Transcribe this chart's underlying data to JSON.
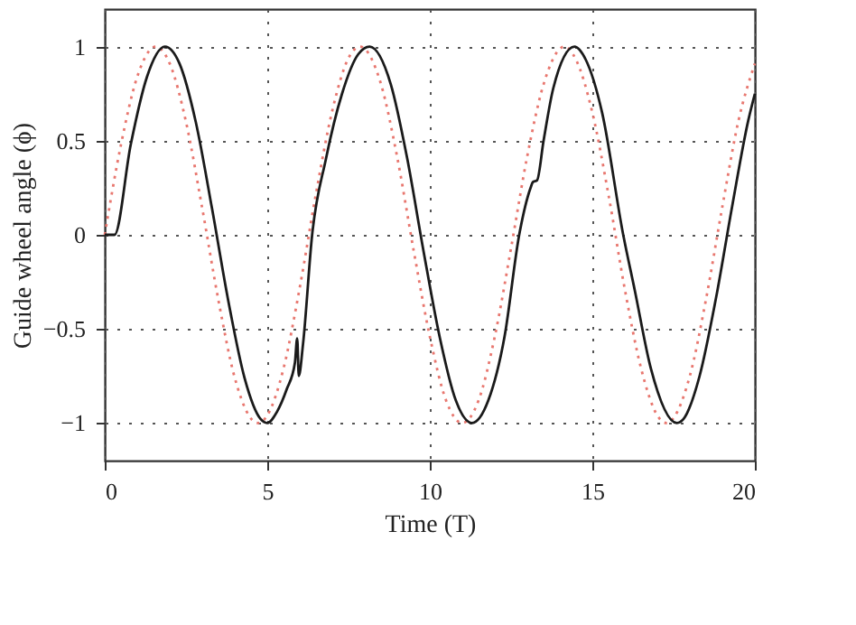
{
  "chart_data": {
    "type": "line",
    "xlabel": "Time (T)",
    "ylabel": "Guide wheel angle (ϕ)",
    "xlim": [
      0,
      20
    ],
    "xticks": [
      0,
      5,
      10,
      15,
      20
    ],
    "ylim": [
      -1.2,
      1.2
    ],
    "yticks": [
      -1,
      -0.5,
      0,
      0.5,
      1
    ],
    "grid": true,
    "series": [
      {
        "color": "#e8776f",
        "line_style": "dotted",
        "x": [
          0,
          0.5,
          1,
          1.57,
          2,
          2.5,
          3,
          3.5,
          4,
          4.71,
          5,
          5.5,
          6,
          6.5,
          7,
          7.5,
          7.85,
          8.5,
          9,
          9.5,
          10,
          10.5,
          11,
          11.5,
          12,
          12.5,
          13,
          13.5,
          14.14,
          14.5,
          15,
          15.5,
          16,
          16.5,
          17,
          17.28,
          18,
          18.5,
          19,
          19.5,
          20
        ],
        "values": [
          0,
          0.48,
          0.84,
          1,
          0.91,
          0.6,
          0.14,
          -0.35,
          -0.76,
          -1,
          -0.96,
          -0.71,
          -0.28,
          0.22,
          0.66,
          0.94,
          1,
          0.8,
          0.41,
          -0.08,
          -0.54,
          -0.88,
          -1,
          -0.88,
          -0.54,
          -0.07,
          0.42,
          0.8,
          1,
          0.93,
          0.65,
          0.21,
          -0.29,
          -0.71,
          -0.96,
          -1,
          -0.75,
          -0.34,
          0.15,
          0.61,
          0.91
        ]
      },
      {
        "color": "#1a1a1a",
        "line_style": "solid",
        "x": [
          0,
          0.3,
          0.8,
          1.3,
          1.85,
          2.3,
          2.8,
          3.3,
          3.8,
          4.3,
          4.8,
          5.0,
          5.3,
          5.6,
          5.85,
          5.92,
          5.97,
          6.1,
          6.38,
          6.8,
          7.3,
          7.8,
          8.15,
          8.8,
          9.3,
          9.8,
          10.3,
          10.8,
          11.3,
          11.8,
          12.3,
          12.75,
          13.1,
          13.17,
          13.3,
          13.5,
          13.8,
          14.45,
          14.8,
          15.3,
          15.95,
          16.3,
          16.8,
          17.6,
          17.8,
          18.3,
          18.8,
          19.3,
          19.8,
          20
        ],
        "values": [
          0,
          0,
          0.48,
          0.84,
          1,
          0.91,
          0.6,
          0.14,
          -0.35,
          -0.76,
          -0.98,
          -1,
          -0.94,
          -0.82,
          -0.68,
          -0.55,
          -0.75,
          -0.58,
          0,
          0.4,
          0.75,
          0.96,
          1,
          0.8,
          0.41,
          -0.08,
          -0.54,
          -0.88,
          -1,
          -0.88,
          -0.54,
          0,
          0.25,
          0.28,
          0.29,
          0.5,
          0.78,
          1,
          0.93,
          0.65,
          0,
          -0.29,
          -0.71,
          -1,
          -0.98,
          -0.75,
          -0.34,
          0.15,
          0.61,
          0.75
        ]
      }
    ]
  }
}
